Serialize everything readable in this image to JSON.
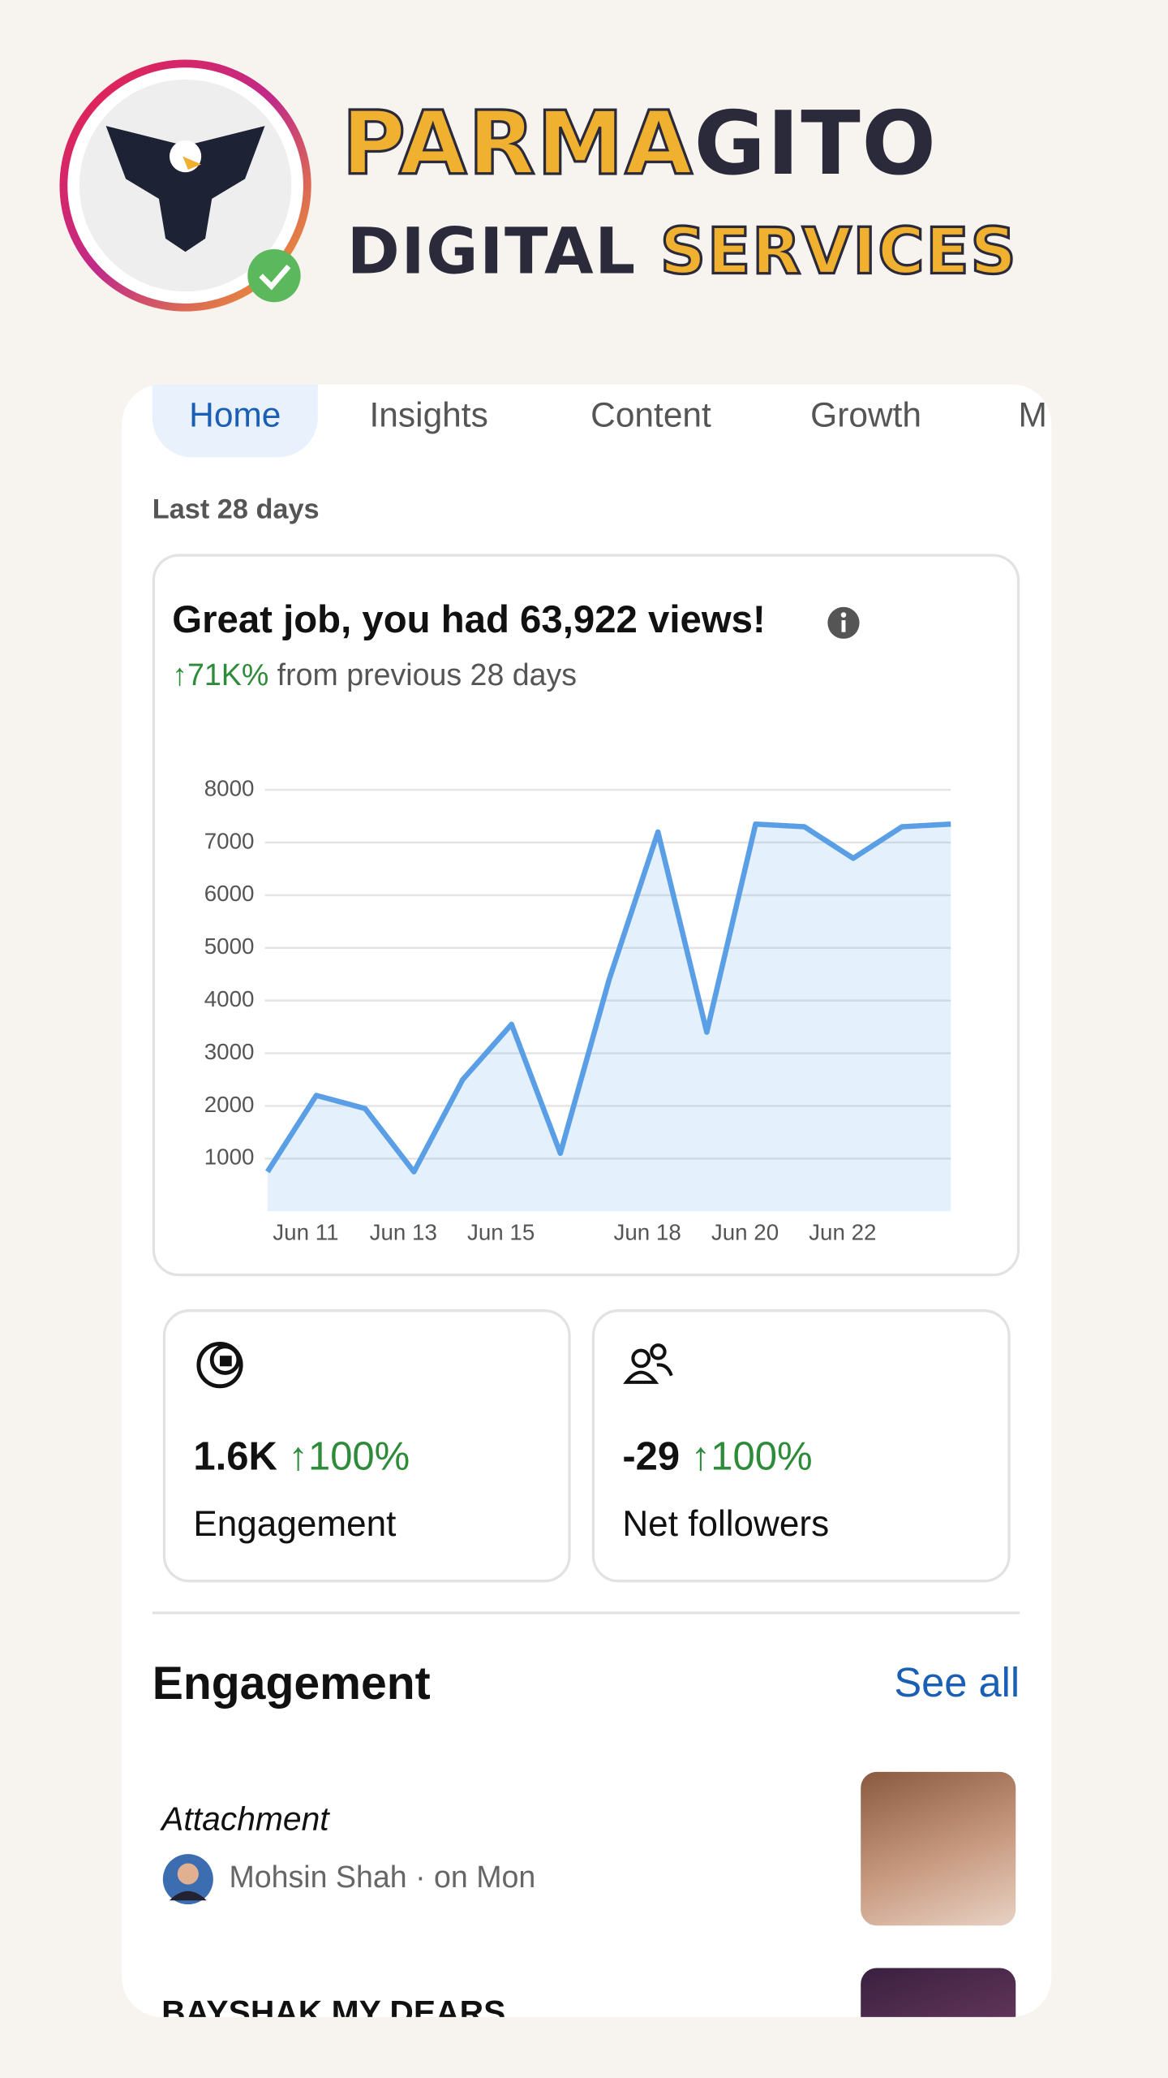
{
  "brand": {
    "line1a": "PARMA",
    "line1b": "GITO",
    "line2a": "DIGITAL",
    "line2b": "SERVICES"
  },
  "tabs": [
    "Home",
    "Insights",
    "Content",
    "Growth",
    "M"
  ],
  "period": "Last 28 days",
  "chart_data": {
    "type": "line",
    "title": "Great job, you had 63,922 views!",
    "change": "↑71K%",
    "subtitle": "from previous 28 days",
    "categories": [
      null,
      "Jun 11",
      null,
      "Jun 13",
      null,
      "Jun 15",
      null,
      null,
      "Jun 18",
      null,
      "Jun 20",
      null,
      "Jun 22",
      null,
      null
    ],
    "series": [
      {
        "name": "Views",
        "color": "#5a9fe6",
        "values": [
          750,
          2200,
          1950,
          750,
          2500,
          3550,
          1100,
          4400,
          7200,
          3400,
          7350,
          7300,
          6700,
          7300,
          7350
        ]
      }
    ],
    "ylim": [
      0,
      8000
    ],
    "yticks": [
      1000,
      2000,
      3000,
      4000,
      5000,
      6000,
      7000,
      8000
    ],
    "grid": true,
    "area": true
  },
  "stats": [
    {
      "value": "1.6K",
      "change": "↑100%",
      "label": "Engagement"
    },
    {
      "value": "-29",
      "change": "↑100%",
      "label": "Net followers"
    }
  ],
  "section": {
    "title": "Engagement",
    "link": "See all"
  },
  "posts": [
    {
      "title": "Attachment",
      "meta": "Mohsin Shah · on Mon"
    },
    {
      "title": "BAYSHAK MY DEARS"
    }
  ]
}
